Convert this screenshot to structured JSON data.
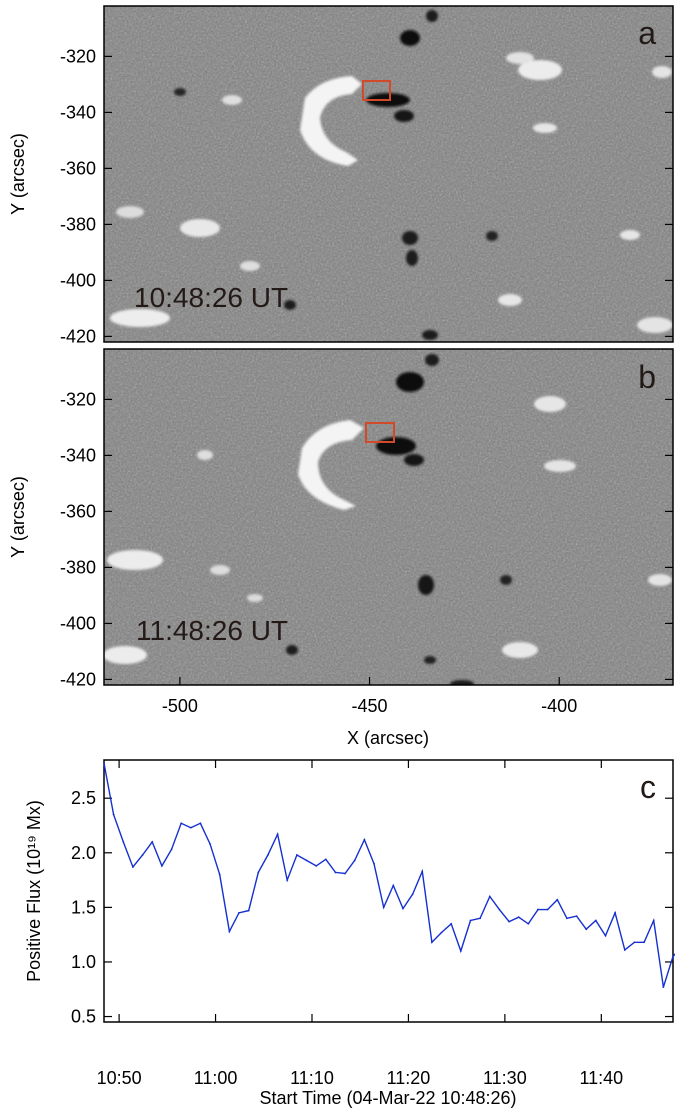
{
  "panels": {
    "a": {
      "letter": "a",
      "timestamp": "10:48:26 UT"
    },
    "b": {
      "letter": "b",
      "timestamp": "11:48:26 UT"
    },
    "c": {
      "letter": "c"
    }
  },
  "magnetogram_axes": {
    "ylabel": "Y (arcsec)",
    "xlabel": "X (arcsec)",
    "yticks": [
      "-320",
      "-340",
      "-360",
      "-380",
      "-400",
      "-420"
    ],
    "xticks": [
      "-500",
      "-450",
      "-400"
    ]
  },
  "colors": {
    "box": "#d24a2a",
    "line": "#1530d0",
    "image_gray": "#7e7e7e"
  },
  "chart_data": [
    {
      "type": "heatmap",
      "panel": "a",
      "title": "",
      "annotation": "10:48:26 UT",
      "xlabel": "",
      "ylabel": "Y (arcsec)",
      "xlim": [
        -520,
        -370
      ],
      "ylim": [
        -422,
        -302
      ],
      "yticks": [
        -320,
        -340,
        -360,
        -380,
        -400,
        -420
      ],
      "box_region": {
        "x": [
          -445,
          -438
        ],
        "y": [
          -337,
          -331
        ]
      }
    },
    {
      "type": "heatmap",
      "panel": "b",
      "title": "",
      "annotation": "11:48:26 UT",
      "xlabel": "X (arcsec)",
      "ylabel": "Y (arcsec)",
      "xlim": [
        -520,
        -370
      ],
      "ylim": [
        -422,
        -302
      ],
      "xticks": [
        -500,
        -450,
        -400
      ],
      "yticks": [
        -320,
        -340,
        -360,
        -380,
        -400,
        -420
      ],
      "box_region": {
        "x": [
          -444,
          -436
        ],
        "y": [
          -336,
          -330
        ]
      }
    },
    {
      "type": "line",
      "panel": "c",
      "title": "",
      "xlabel": "Start Time (04-Mar-22 10:48:26)",
      "ylabel": "Positive Flux (10¹⁹ Mx)",
      "xlim": [
        10.8073,
        11.7906
      ],
      "ylim": [
        0.45,
        2.85
      ],
      "xticks": [
        "10:50",
        "11:00",
        "11:10",
        "11:20",
        "11:30",
        "11:40"
      ],
      "yticks": [
        "0.5",
        "1.0",
        "1.5",
        "2.0",
        "2.5"
      ],
      "x_unit": "minutes after 10:48:26",
      "x_minutes": [
        0,
        1,
        2,
        3,
        4,
        5,
        6,
        7,
        8,
        9,
        10,
        11,
        12,
        13,
        14,
        15,
        16,
        17,
        18,
        19,
        20,
        21,
        22,
        23,
        24,
        25,
        26,
        27,
        28,
        29,
        30,
        31,
        32,
        33,
        34,
        35,
        36,
        37,
        38,
        39,
        40,
        41,
        42,
        43,
        44,
        45,
        46,
        47,
        48,
        49,
        50,
        51,
        52,
        53,
        54,
        55,
        56,
        57,
        58,
        59,
        60
      ],
      "series": [
        {
          "values": [
            2.82,
            2.35,
            2.1,
            1.87,
            1.98,
            2.1,
            1.88,
            2.03,
            2.27,
            2.23,
            2.27,
            2.08,
            1.8,
            1.28,
            1.45,
            1.47,
            1.82,
            1.98,
            2.17,
            1.75,
            1.98,
            1.93,
            1.88,
            1.94,
            1.82,
            1.81,
            1.93,
            2.12,
            1.9,
            1.5,
            1.7,
            1.49,
            1.62,
            1.83,
            1.18,
            1.27,
            1.35,
            1.1,
            1.38,
            1.4,
            1.6,
            1.48,
            1.37,
            1.41,
            1.35,
            1.48,
            1.48,
            1.57,
            1.4,
            1.42,
            1.3,
            1.38,
            1.24,
            1.45,
            1.11,
            1.18,
            1.18,
            1.38,
            0.77,
            1.05,
            1.15
          ]
        }
      ]
    }
  ]
}
